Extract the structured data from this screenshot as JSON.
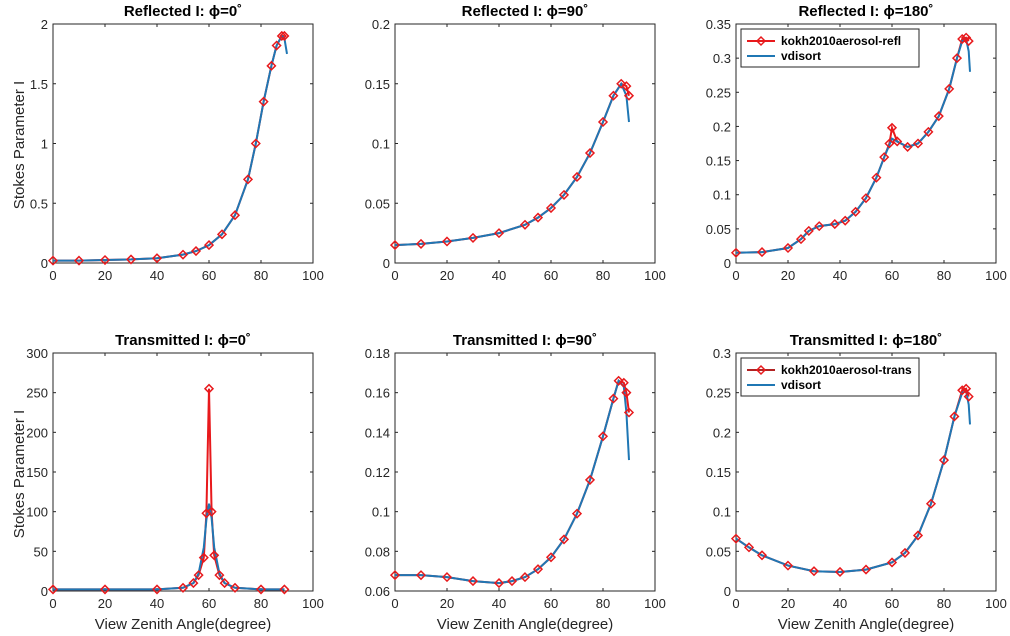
{
  "figure": {
    "xlabel": "View Zenith Angle(degree)",
    "ylabel": "Stokes Parameter I"
  },
  "colors": {
    "model": "#e8191c",
    "vdisort": "#1f77b4",
    "legend_model_line": "#b22222"
  },
  "chart_data": [
    {
      "type": "line",
      "id": "refl-0",
      "title": "Reflected I: ϕ=0˚",
      "xlim": [
        0,
        100
      ],
      "ylim": [
        0,
        2
      ],
      "xticks": [
        "0",
        "20",
        "40",
        "60",
        "80",
        "100"
      ],
      "yticks": [
        "0",
        "0.5",
        "1",
        "1.5",
        "2"
      ],
      "ytick_values": [
        0,
        0.5,
        1,
        1.5,
        2
      ],
      "legend": null,
      "series": [
        {
          "name": "kokh2010aerosol-refl",
          "style": "line-diamond",
          "points": [
            [
              0,
              0.02
            ],
            [
              10,
              0.02
            ],
            [
              20,
              0.025
            ],
            [
              30,
              0.03
            ],
            [
              40,
              0.04
            ],
            [
              50,
              0.07
            ],
            [
              55,
              0.1
            ],
            [
              60,
              0.15
            ],
            [
              65,
              0.24
            ],
            [
              70,
              0.4
            ],
            [
              75,
              0.7
            ],
            [
              78,
              1.0
            ],
            [
              81,
              1.35
            ],
            [
              84,
              1.65
            ],
            [
              86,
              1.82
            ],
            [
              88,
              1.9
            ],
            [
              89,
              1.9
            ]
          ]
        },
        {
          "name": "vdisort",
          "style": "line",
          "points": [
            [
              0,
              0.02
            ],
            [
              10,
              0.02
            ],
            [
              20,
              0.025
            ],
            [
              30,
              0.03
            ],
            [
              40,
              0.04
            ],
            [
              50,
              0.07
            ],
            [
              55,
              0.1
            ],
            [
              60,
              0.15
            ],
            [
              65,
              0.24
            ],
            [
              70,
              0.4
            ],
            [
              75,
              0.7
            ],
            [
              78,
              1.0
            ],
            [
              81,
              1.35
            ],
            [
              84,
              1.65
            ],
            [
              86,
              1.82
            ],
            [
              88,
              1.9
            ],
            [
              89,
              1.88
            ],
            [
              90,
              1.75
            ]
          ]
        }
      ]
    },
    {
      "type": "line",
      "id": "refl-90",
      "title": "Reflected I: ϕ=90˚",
      "xlim": [
        0,
        100
      ],
      "ylim": [
        0,
        0.2
      ],
      "xticks": [
        "0",
        "20",
        "40",
        "60",
        "80",
        "100"
      ],
      "yticks": [
        "0",
        "0.05",
        "0.1",
        "0.15",
        "0.2"
      ],
      "ytick_values": [
        0,
        0.05,
        0.1,
        0.15,
        0.2
      ],
      "legend": null,
      "series": [
        {
          "name": "kokh2010aerosol-refl",
          "style": "line-diamond",
          "points": [
            [
              0,
              0.015
            ],
            [
              10,
              0.016
            ],
            [
              20,
              0.018
            ],
            [
              30,
              0.021
            ],
            [
              40,
              0.025
            ],
            [
              50,
              0.032
            ],
            [
              55,
              0.038
            ],
            [
              60,
              0.046
            ],
            [
              65,
              0.057
            ],
            [
              70,
              0.072
            ],
            [
              75,
              0.092
            ],
            [
              80,
              0.118
            ],
            [
              84,
              0.14
            ],
            [
              87,
              0.15
            ],
            [
              89,
              0.148
            ],
            [
              90,
              0.14
            ]
          ]
        },
        {
          "name": "vdisort",
          "style": "line",
          "points": [
            [
              0,
              0.015
            ],
            [
              10,
              0.016
            ],
            [
              20,
              0.018
            ],
            [
              30,
              0.021
            ],
            [
              40,
              0.025
            ],
            [
              50,
              0.032
            ],
            [
              55,
              0.038
            ],
            [
              60,
              0.046
            ],
            [
              65,
              0.057
            ],
            [
              70,
              0.072
            ],
            [
              75,
              0.092
            ],
            [
              80,
              0.118
            ],
            [
              84,
              0.14
            ],
            [
              87,
              0.15
            ],
            [
              89,
              0.14
            ],
            [
              90,
              0.118
            ]
          ]
        }
      ]
    },
    {
      "type": "line",
      "id": "refl-180",
      "title": "Reflected I: ϕ=180˚",
      "xlim": [
        0,
        100
      ],
      "ylim": [
        0,
        0.35
      ],
      "xticks": [
        "0",
        "20",
        "40",
        "60",
        "80",
        "100"
      ],
      "yticks": [
        "0",
        "0.05",
        "0.1",
        "0.15",
        "0.2",
        "0.25",
        "0.3",
        "0.35"
      ],
      "ytick_values": [
        0,
        0.05,
        0.1,
        0.15,
        0.2,
        0.25,
        0.3,
        0.35
      ],
      "legend": {
        "location": "top-left",
        "entries": [
          "kokh2010aerosol-refl",
          "vdisort"
        ]
      },
      "series": [
        {
          "name": "kokh2010aerosol-refl",
          "style": "line-diamond",
          "points": [
            [
              0,
              0.015
            ],
            [
              10,
              0.016
            ],
            [
              20,
              0.022
            ],
            [
              25,
              0.035
            ],
            [
              28,
              0.047
            ],
            [
              32,
              0.054
            ],
            [
              38,
              0.057
            ],
            [
              42,
              0.062
            ],
            [
              46,
              0.075
            ],
            [
              50,
              0.095
            ],
            [
              54,
              0.125
            ],
            [
              57,
              0.155
            ],
            [
              59,
              0.175
            ],
            [
              60,
              0.198
            ],
            [
              62,
              0.178
            ],
            [
              66,
              0.17
            ],
            [
              70,
              0.175
            ],
            [
              74,
              0.192
            ],
            [
              78,
              0.215
            ],
            [
              82,
              0.255
            ],
            [
              85,
              0.3
            ],
            [
              87,
              0.328
            ],
            [
              88.5,
              0.33
            ],
            [
              89.5,
              0.325
            ]
          ]
        },
        {
          "name": "vdisort",
          "style": "line",
          "points": [
            [
              0,
              0.015
            ],
            [
              10,
              0.016
            ],
            [
              20,
              0.022
            ],
            [
              25,
              0.035
            ],
            [
              28,
              0.047
            ],
            [
              32,
              0.054
            ],
            [
              38,
              0.057
            ],
            [
              42,
              0.062
            ],
            [
              46,
              0.075
            ],
            [
              50,
              0.095
            ],
            [
              54,
              0.125
            ],
            [
              57,
              0.155
            ],
            [
              60,
              0.182
            ],
            [
              62,
              0.178
            ],
            [
              66,
              0.17
            ],
            [
              70,
              0.175
            ],
            [
              74,
              0.192
            ],
            [
              78,
              0.215
            ],
            [
              82,
              0.255
            ],
            [
              85,
              0.3
            ],
            [
              87,
              0.325
            ],
            [
              88.5,
              0.328
            ],
            [
              89.5,
              0.31
            ],
            [
              90,
              0.28
            ]
          ]
        }
      ]
    },
    {
      "type": "line",
      "id": "trans-0",
      "title": "Transmitted I: ϕ=0˚",
      "xlim": [
        0,
        100
      ],
      "ylim": [
        0,
        300
      ],
      "xticks": [
        "0",
        "20",
        "40",
        "60",
        "80",
        "100"
      ],
      "yticks": [
        "0",
        "50",
        "100",
        "150",
        "200",
        "250",
        "300"
      ],
      "ytick_values": [
        0,
        50,
        100,
        150,
        200,
        250,
        300
      ],
      "legend": null,
      "series": [
        {
          "name": "kokh2010aerosol-trans",
          "style": "line-diamond",
          "points": [
            [
              0,
              2
            ],
            [
              20,
              2
            ],
            [
              40,
              2
            ],
            [
              50,
              4
            ],
            [
              54,
              10
            ],
            [
              56,
              20
            ],
            [
              58,
              42
            ],
            [
              59,
              98
            ],
            [
              60,
              255
            ],
            [
              61,
              100
            ],
            [
              62,
              45
            ],
            [
              64,
              20
            ],
            [
              66,
              10
            ],
            [
              70,
              4
            ],
            [
              80,
              2
            ],
            [
              89,
              2
            ]
          ]
        },
        {
          "name": "vdisort",
          "style": "line",
          "points": [
            [
              0,
              2
            ],
            [
              20,
              2
            ],
            [
              40,
              2
            ],
            [
              50,
              4
            ],
            [
              54,
              10
            ],
            [
              56,
              22
            ],
            [
              58,
              55
            ],
            [
              59,
              90
            ],
            [
              60,
              110
            ],
            [
              61,
              92
            ],
            [
              62,
              55
            ],
            [
              64,
              22
            ],
            [
              66,
              10
            ],
            [
              70,
              4
            ],
            [
              80,
              2
            ],
            [
              89,
              2
            ]
          ]
        }
      ]
    },
    {
      "type": "line",
      "id": "trans-90",
      "title": "Transmitted I: ϕ=90˚",
      "xlim": [
        0,
        100
      ],
      "ylim": [
        0.06,
        0.18
      ],
      "xticks": [
        "0",
        "20",
        "40",
        "60",
        "80",
        "100"
      ],
      "yticks": [
        "0.06",
        "0.08",
        "0.1",
        "0.12",
        "0.14",
        "0.16",
        "0.18"
      ],
      "ytick_values": [
        0.06,
        0.08,
        0.1,
        0.12,
        0.14,
        0.16,
        0.18
      ],
      "legend": null,
      "series": [
        {
          "name": "kokh2010aerosol-trans",
          "style": "line-diamond",
          "points": [
            [
              0,
              0.068
            ],
            [
              10,
              0.068
            ],
            [
              20,
              0.067
            ],
            [
              30,
              0.065
            ],
            [
              40,
              0.064
            ],
            [
              45,
              0.065
            ],
            [
              50,
              0.067
            ],
            [
              55,
              0.071
            ],
            [
              60,
              0.077
            ],
            [
              65,
              0.086
            ],
            [
              70,
              0.099
            ],
            [
              75,
              0.116
            ],
            [
              80,
              0.138
            ],
            [
              84,
              0.157
            ],
            [
              86,
              0.166
            ],
            [
              88,
              0.165
            ],
            [
              89,
              0.16
            ],
            [
              90,
              0.15
            ]
          ]
        },
        {
          "name": "vdisort",
          "style": "line",
          "points": [
            [
              0,
              0.068
            ],
            [
              10,
              0.068
            ],
            [
              20,
              0.067
            ],
            [
              30,
              0.065
            ],
            [
              40,
              0.064
            ],
            [
              45,
              0.065
            ],
            [
              50,
              0.067
            ],
            [
              55,
              0.071
            ],
            [
              60,
              0.077
            ],
            [
              65,
              0.086
            ],
            [
              70,
              0.099
            ],
            [
              75,
              0.116
            ],
            [
              80,
              0.138
            ],
            [
              84,
              0.157
            ],
            [
              86,
              0.166
            ],
            [
              88,
              0.163
            ],
            [
              89,
              0.15
            ],
            [
              90,
              0.126
            ]
          ]
        }
      ]
    },
    {
      "type": "line",
      "id": "trans-180",
      "title": "Transmitted I: ϕ=180˚",
      "xlim": [
        0,
        100
      ],
      "ylim": [
        0,
        0.3
      ],
      "xticks": [
        "0",
        "20",
        "40",
        "60",
        "80",
        "100"
      ],
      "yticks": [
        "0",
        "0.05",
        "0.1",
        "0.15",
        "0.2",
        "0.25",
        "0.3"
      ],
      "ytick_values": [
        0,
        0.05,
        0.1,
        0.15,
        0.2,
        0.25,
        0.3
      ],
      "legend": {
        "location": "top-left",
        "entries": [
          "kokh2010aerosol-trans",
          "vdisort"
        ]
      },
      "series": [
        {
          "name": "kokh2010aerosol-trans",
          "style": "line-diamond",
          "points": [
            [
              0,
              0.066
            ],
            [
              5,
              0.055
            ],
            [
              10,
              0.045
            ],
            [
              20,
              0.032
            ],
            [
              30,
              0.025
            ],
            [
              40,
              0.024
            ],
            [
              50,
              0.027
            ],
            [
              60,
              0.036
            ],
            [
              65,
              0.048
            ],
            [
              70,
              0.07
            ],
            [
              75,
              0.11
            ],
            [
              80,
              0.165
            ],
            [
              84,
              0.22
            ],
            [
              87,
              0.253
            ],
            [
              88.5,
              0.255
            ],
            [
              89.5,
              0.245
            ]
          ]
        },
        {
          "name": "vdisort",
          "style": "line",
          "points": [
            [
              0,
              0.066
            ],
            [
              5,
              0.055
            ],
            [
              10,
              0.045
            ],
            [
              20,
              0.032
            ],
            [
              30,
              0.025
            ],
            [
              40,
              0.024
            ],
            [
              50,
              0.027
            ],
            [
              60,
              0.036
            ],
            [
              65,
              0.048
            ],
            [
              70,
              0.07
            ],
            [
              75,
              0.11
            ],
            [
              80,
              0.165
            ],
            [
              84,
              0.22
            ],
            [
              87,
              0.25
            ],
            [
              88.5,
              0.252
            ],
            [
              89.5,
              0.235
            ],
            [
              90,
              0.21
            ]
          ]
        }
      ]
    }
  ]
}
